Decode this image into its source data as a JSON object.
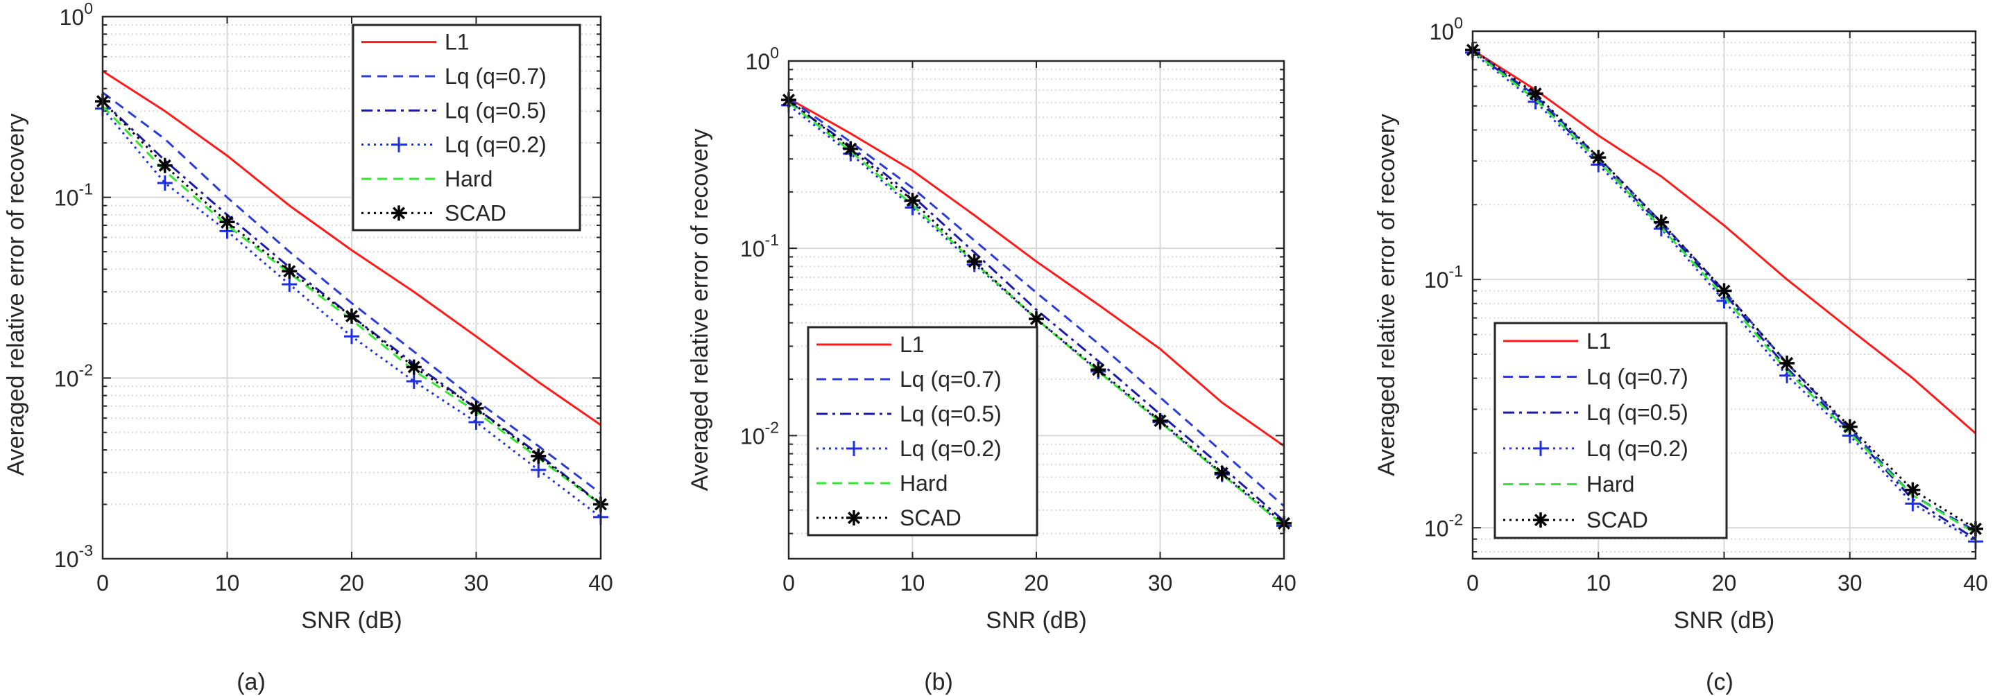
{
  "colors": {
    "L1": "#ff1a1a",
    "Lq07": "#2b3bd6",
    "Lq05": "#1a1aa8",
    "Lq02": "#1c2ee6",
    "Hard": "#33e633",
    "SCAD": "#000000",
    "grid": "#d9d9d9",
    "axis": "#262626"
  },
  "chart_data": [
    {
      "type": "line",
      "caption": "(a)",
      "xlabel": "SNR (dB)",
      "ylabel": "Averaged relative error of recovery",
      "x_scale": "linear",
      "y_scale": "log",
      "xlim": [
        0,
        40
      ],
      "ylim": [
        0.001,
        1
      ],
      "xticks": [
        0,
        10,
        20,
        30,
        40
      ],
      "xtick_labels": [
        "0",
        "10",
        "20",
        "30",
        "40"
      ],
      "ytick_exps": [
        -3,
        -2,
        -1,
        0
      ],
      "grid": true,
      "legend_position": "top-right",
      "x": [
        0,
        5,
        10,
        15,
        20,
        25,
        30,
        35,
        40
      ],
      "series": [
        {
          "name": "L1",
          "style": "solid",
          "values": [
            0.5,
            0.3,
            0.17,
            0.09,
            0.051,
            0.03,
            0.017,
            0.0095,
            0.0055
          ]
        },
        {
          "name": "Lq (q=0.7)",
          "style": "dashed",
          "values": [
            0.38,
            0.21,
            0.1,
            0.05,
            0.026,
            0.014,
            0.0075,
            0.0042,
            0.0023
          ]
        },
        {
          "name": "Lq (q=0.5)",
          "style": "dashdot",
          "values": [
            0.34,
            0.16,
            0.08,
            0.041,
            0.022,
            0.012,
            0.0068,
            0.0038,
            0.002
          ]
        },
        {
          "name": "Lq (q=0.2)",
          "style": "dotted",
          "marker": "+",
          "values": [
            0.31,
            0.12,
            0.065,
            0.033,
            0.017,
            0.0096,
            0.0057,
            0.0031,
            0.0017
          ]
        },
        {
          "name": "Hard",
          "style": "dashed",
          "values": [
            0.32,
            0.14,
            0.07,
            0.038,
            0.021,
            0.011,
            0.0065,
            0.0036,
            0.002
          ]
        },
        {
          "name": "SCAD",
          "style": "dotted",
          "marker": "*",
          "values": [
            0.34,
            0.15,
            0.073,
            0.039,
            0.022,
            0.0115,
            0.0068,
            0.0037,
            0.002
          ]
        }
      ]
    },
    {
      "type": "line",
      "caption": "(b)",
      "xlabel": "SNR (dB)",
      "ylabel": "Averaged relative error of recovery",
      "x_scale": "linear",
      "y_scale": "log",
      "xlim": [
        0,
        40
      ],
      "ylim": [
        0.0022,
        1
      ],
      "xticks": [
        0,
        10,
        20,
        30,
        40
      ],
      "xtick_labels": [
        "0",
        "10",
        "20",
        "30",
        "40"
      ],
      "ytick_exps": [
        -2,
        -1,
        0
      ],
      "grid": true,
      "legend_position": "bottom-left",
      "x": [
        0,
        5,
        10,
        15,
        20,
        25,
        30,
        35,
        40
      ],
      "series": [
        {
          "name": "L1",
          "style": "solid",
          "values": [
            0.63,
            0.41,
            0.26,
            0.15,
            0.085,
            0.05,
            0.029,
            0.015,
            0.0088
          ]
        },
        {
          "name": "Lq (q=0.7)",
          "style": "dashed",
          "values": [
            0.63,
            0.37,
            0.21,
            0.11,
            0.058,
            0.031,
            0.016,
            0.0082,
            0.0042
          ]
        },
        {
          "name": "Lq (q=0.5)",
          "style": "dashdot",
          "values": [
            0.61,
            0.35,
            0.19,
            0.095,
            0.047,
            0.025,
            0.013,
            0.0068,
            0.0035
          ]
        },
        {
          "name": "Lq (q=0.2)",
          "style": "dotted",
          "marker": "+",
          "values": [
            0.58,
            0.32,
            0.165,
            0.082,
            0.042,
            0.022,
            0.0118,
            0.0062,
            0.0033
          ]
        },
        {
          "name": "Hard",
          "style": "dashed",
          "values": [
            0.6,
            0.33,
            0.17,
            0.084,
            0.042,
            0.022,
            0.0118,
            0.0062,
            0.0033
          ]
        },
        {
          "name": "SCAD",
          "style": "dotted",
          "marker": "*",
          "values": [
            0.62,
            0.34,
            0.18,
            0.085,
            0.042,
            0.0225,
            0.012,
            0.0063,
            0.0034
          ]
        }
      ]
    },
    {
      "type": "line",
      "caption": "(c)",
      "xlabel": "SNR (dB)",
      "ylabel": "Averaged relative error of recovery",
      "x_scale": "linear",
      "y_scale": "log",
      "xlim": [
        0,
        40
      ],
      "ylim": [
        0.0075,
        1
      ],
      "xticks": [
        0,
        10,
        20,
        30,
        40
      ],
      "xtick_labels": [
        "0",
        "10",
        "20",
        "30",
        "40"
      ],
      "ytick_exps": [
        -2,
        -1,
        0
      ],
      "grid": true,
      "legend_position": "bottom-left",
      "x": [
        0,
        5,
        10,
        15,
        20,
        25,
        30,
        35,
        40
      ],
      "series": [
        {
          "name": "L1",
          "style": "solid",
          "values": [
            0.84,
            0.58,
            0.38,
            0.26,
            0.165,
            0.1,
            0.063,
            0.04,
            0.024
          ]
        },
        {
          "name": "Lq (q=0.7)",
          "style": "dashed",
          "values": [
            0.84,
            0.55,
            0.31,
            0.17,
            0.09,
            0.046,
            0.025,
            0.0135,
            0.0097
          ]
        },
        {
          "name": "Lq (q=0.5)",
          "style": "dashdot",
          "values": [
            0.83,
            0.54,
            0.3,
            0.165,
            0.088,
            0.044,
            0.0245,
            0.013,
            0.009
          ]
        },
        {
          "name": "Lq (q=0.2)",
          "style": "dotted",
          "marker": "+",
          "values": [
            0.82,
            0.52,
            0.29,
            0.16,
            0.082,
            0.041,
            0.0235,
            0.0125,
            0.0088
          ]
        },
        {
          "name": "Hard",
          "style": "dashed",
          "values": [
            0.83,
            0.53,
            0.3,
            0.162,
            0.085,
            0.043,
            0.024,
            0.0135,
            0.0095
          ]
        },
        {
          "name": "SCAD",
          "style": "dotted",
          "marker": "*",
          "values": [
            0.84,
            0.56,
            0.31,
            0.17,
            0.09,
            0.046,
            0.0255,
            0.0142,
            0.0099
          ]
        }
      ]
    }
  ]
}
